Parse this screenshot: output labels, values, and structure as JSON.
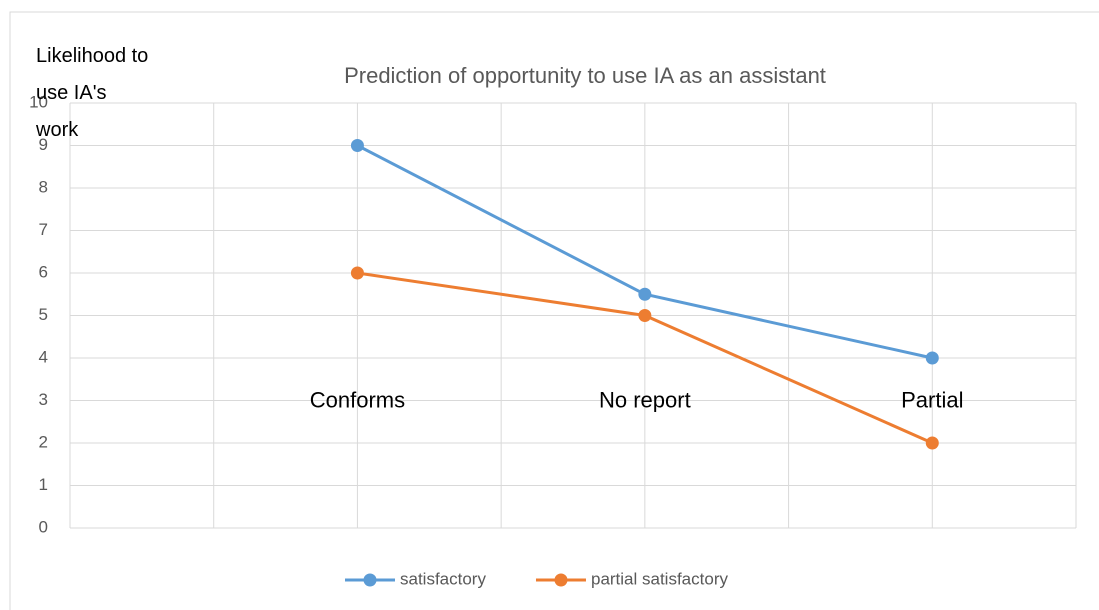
{
  "chart_data": {
    "type": "line",
    "title": "Prediction of opportunity to use IA as an assistant",
    "ylabel": "Likelihood to use IA's work",
    "categories": [
      "Conforms",
      "No report",
      "Partial"
    ],
    "series": [
      {
        "name": "satisfactory",
        "color": "#5b9bd5",
        "values": [
          9,
          5.5,
          4
        ]
      },
      {
        "name": "partial satisfactory",
        "color": "#ed7d31",
        "values": [
          6,
          5,
          2
        ]
      }
    ],
    "ylim": [
      0,
      10
    ],
    "yticks": [
      0,
      1,
      2,
      3,
      4,
      5,
      6,
      7,
      8,
      9,
      10
    ],
    "grid": true,
    "legend": "bottom"
  }
}
